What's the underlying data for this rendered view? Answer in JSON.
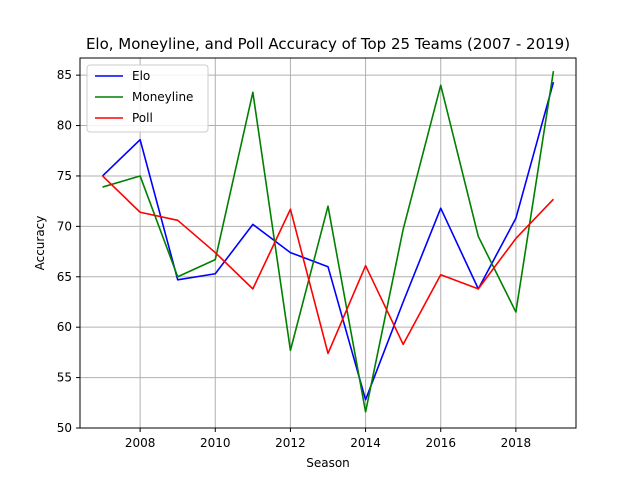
{
  "chart_data": {
    "type": "line",
    "title": "Elo, Moneyline, and Poll Accuracy of Top 25 Teams (2007 - 2019)",
    "xlabel": "Season",
    "ylabel": "Accuracy",
    "xlim": [
      2006.4,
      2019.6
    ],
    "ylim": [
      50.0,
      86.7
    ],
    "xticks": [
      2008,
      2010,
      2012,
      2014,
      2016,
      2018
    ],
    "yticks": [
      50,
      55,
      60,
      65,
      70,
      75,
      80,
      85
    ],
    "grid": true,
    "legend_position": "top-left",
    "x": [
      2007,
      2008,
      2009,
      2010,
      2011,
      2012,
      2013,
      2014,
      2015,
      2016,
      2017,
      2018,
      2019
    ],
    "series": [
      {
        "name": "Elo",
        "color": "#0000ff",
        "values": [
          75.0,
          78.6,
          64.7,
          65.3,
          70.2,
          67.4,
          66.0,
          52.8,
          62.5,
          71.8,
          63.8,
          70.8,
          84.3
        ]
      },
      {
        "name": "Moneyline",
        "color": "#008000",
        "values": [
          73.9,
          75.0,
          65.0,
          66.7,
          83.3,
          57.7,
          72.0,
          51.6,
          69.7,
          84.0,
          69.0,
          61.5,
          85.4
        ]
      },
      {
        "name": "Poll",
        "color": "#ff0000",
        "values": [
          75.0,
          71.4,
          70.6,
          67.4,
          63.8,
          71.7,
          57.4,
          66.1,
          58.3,
          65.2,
          63.8,
          68.8,
          72.7
        ]
      }
    ]
  }
}
